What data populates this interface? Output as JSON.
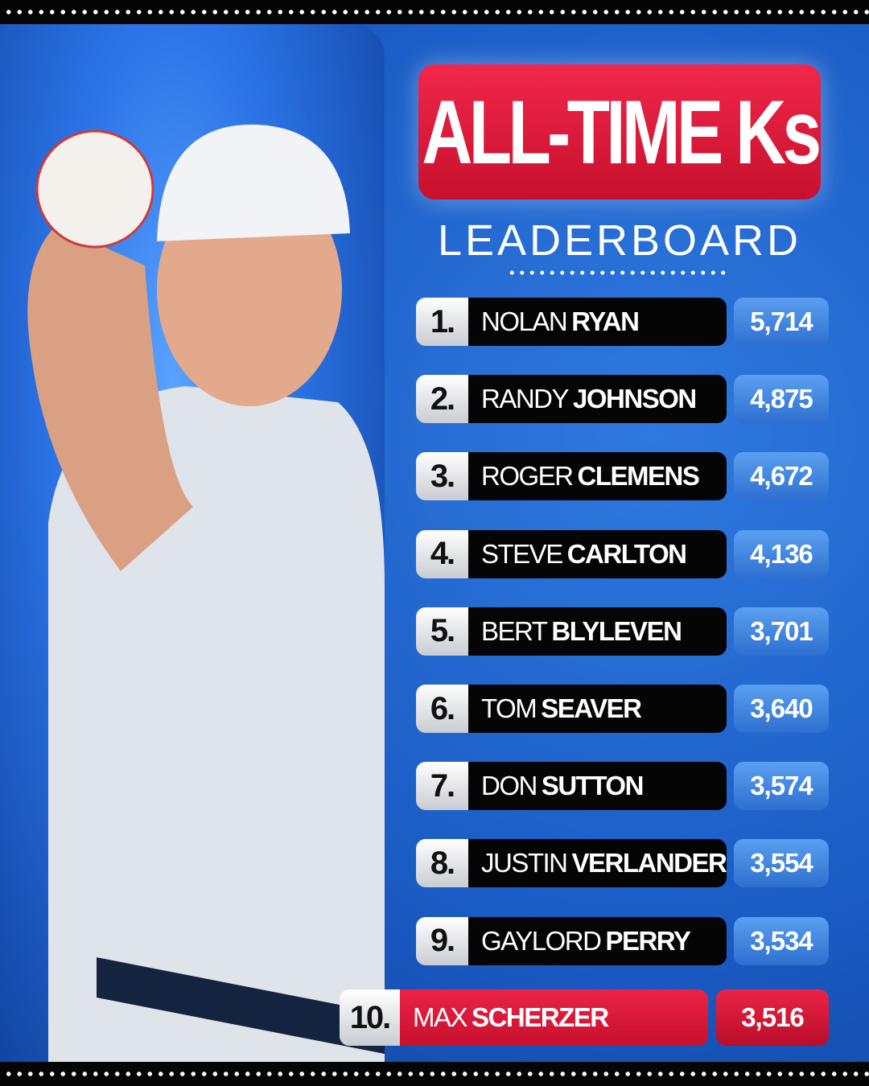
{
  "header": {
    "title": "ALL-TIME Ks",
    "subtitle": "LEADERBOARD"
  },
  "table": {
    "rows": [
      {
        "rank": "1.",
        "first": "NOLAN",
        "last": "RYAN",
        "value": "5,714"
      },
      {
        "rank": "2.",
        "first": "RANDY",
        "last": "JOHNSON",
        "value": "4,875"
      },
      {
        "rank": "3.",
        "first": "ROGER",
        "last": "CLEMENS",
        "value": "4,672"
      },
      {
        "rank": "4.",
        "first": "STEVE",
        "last": "CARLTON",
        "value": "4,136"
      },
      {
        "rank": "5.",
        "first": "BERT",
        "last": "BLYLEVEN",
        "value": "3,701"
      },
      {
        "rank": "6.",
        "first": "TOM",
        "last": "SEAVER",
        "value": "3,640"
      },
      {
        "rank": "7.",
        "first": "DON",
        "last": "SUTTON",
        "value": "3,574"
      },
      {
        "rank": "8.",
        "first": "JUSTIN",
        "last": "VERLANDER",
        "value": "3,554"
      },
      {
        "rank": "9.",
        "first": "GAYLORD",
        "last": "PERRY",
        "value": "3,534"
      },
      {
        "rank": "10.",
        "first": "MAX",
        "last": "SCHERZER",
        "value": "3,516"
      }
    ]
  }
}
